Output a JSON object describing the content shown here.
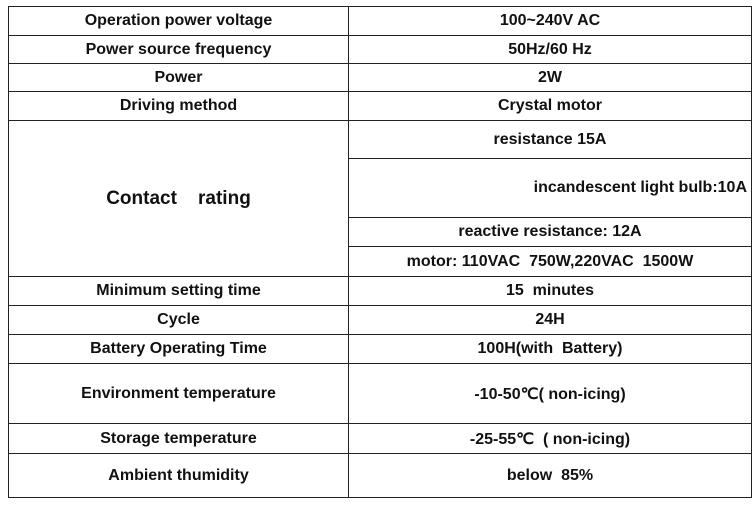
{
  "table": {
    "rows": [
      {
        "label": "Operation power voltage",
        "value": "100~240V AC"
      },
      {
        "label": "Power source frequency",
        "value": "50Hz/60 Hz"
      },
      {
        "label": "Power",
        "value": "2W"
      },
      {
        "label": "Driving method",
        "value": "Crystal motor"
      },
      {
        "label": "Contact    rating",
        "values": [
          "resistance 15A",
          "incandescent light bulb:10A",
          "reactive resistance: 12A",
          "motor: 110VAC  750W,220VAC  1500W"
        ]
      },
      {
        "label": "Minimum setting time",
        "value": "15  minutes"
      },
      {
        "label": "Cycle",
        "value": "24H"
      },
      {
        "label": "Battery Operating Time",
        "value": "100H(with  Battery)"
      },
      {
        "label": "Environment temperature",
        "value": "-10-50℃( non-icing)"
      },
      {
        "label": "Storage temperature",
        "value": "-25-55℃  ( non-icing)"
      },
      {
        "label": "Ambient thumidity",
        "value": "below  85%"
      }
    ]
  }
}
